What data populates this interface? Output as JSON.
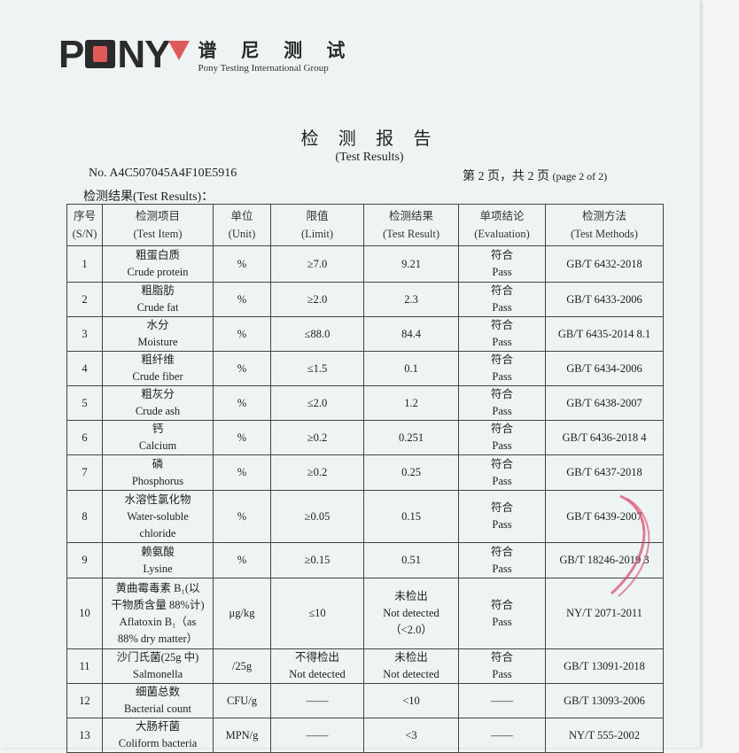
{
  "logo": {
    "brand": "PONY",
    "cn_name": "谱 尼 测 试",
    "en_name": "Pony Testing International Group",
    "accent_color": "#e05a5a"
  },
  "title": "检 测 报 告",
  "subtitle": "(Test Results)",
  "report_no": "No. A4C507045A4F10E5916",
  "page_info": "第 2 页，共 2 页",
  "page_info_en": "(page 2 of 2)",
  "section_label": "检测结果(Test Results)：",
  "table": {
    "headers": [
      [
        "序号",
        "(S/N)"
      ],
      [
        "检测项目",
        "(Test Item)"
      ],
      [
        "单位",
        "(Unit)"
      ],
      [
        "限值",
        "(Limit)"
      ],
      [
        "检测结果",
        "(Test Result)"
      ],
      [
        "单项结论",
        "(Evaluation)"
      ],
      [
        "检测方法",
        "(Test Methods)"
      ]
    ],
    "rows": [
      {
        "sn": "1",
        "item": [
          "粗蛋白质",
          "Crude protein"
        ],
        "unit": "%",
        "limit": [
          "≥7.0"
        ],
        "result": [
          "9.21"
        ],
        "eval": [
          "符合",
          "Pass"
        ],
        "method": "GB/T 6432-2018"
      },
      {
        "sn": "2",
        "item": [
          "粗脂肪",
          "Crude fat"
        ],
        "unit": "%",
        "limit": [
          "≥2.0"
        ],
        "result": [
          "2.3"
        ],
        "eval": [
          "符合",
          "Pass"
        ],
        "method": "GB/T 6433-2006"
      },
      {
        "sn": "3",
        "item": [
          "水分",
          "Moisture"
        ],
        "unit": "%",
        "limit": [
          "≤88.0"
        ],
        "result": [
          "84.4"
        ],
        "eval": [
          "符合",
          "Pass"
        ],
        "method": "GB/T 6435-2014 8.1"
      },
      {
        "sn": "4",
        "item": [
          "粗纤维",
          "Crude fiber"
        ],
        "unit": "%",
        "limit": [
          "≤1.5"
        ],
        "result": [
          "0.1"
        ],
        "eval": [
          "符合",
          "Pass"
        ],
        "method": "GB/T 6434-2006"
      },
      {
        "sn": "5",
        "item": [
          "粗灰分",
          "Crude ash"
        ],
        "unit": "%",
        "limit": [
          "≤2.0"
        ],
        "result": [
          "1.2"
        ],
        "eval": [
          "符合",
          "Pass"
        ],
        "method": "GB/T 6438-2007"
      },
      {
        "sn": "6",
        "item": [
          "钙",
          "Calcium"
        ],
        "unit": "%",
        "limit": [
          "≥0.2"
        ],
        "result": [
          "0.251"
        ],
        "eval": [
          "符合",
          "Pass"
        ],
        "method": "GB/T 6436-2018 4"
      },
      {
        "sn": "7",
        "item": [
          "磷",
          "Phosphorus"
        ],
        "unit": "%",
        "limit": [
          "≥0.2"
        ],
        "result": [
          "0.25"
        ],
        "eval": [
          "符合",
          "Pass"
        ],
        "method": "GB/T 6437-2018"
      },
      {
        "sn": "8",
        "item": [
          "水溶性氯化物",
          "Water-soluble",
          "chloride"
        ],
        "unit": "%",
        "limit": [
          "≥0.05"
        ],
        "result": [
          "0.15"
        ],
        "eval": [
          "符合",
          "Pass"
        ],
        "method": "GB/T 6439-2007"
      },
      {
        "sn": "9",
        "item": [
          "赖氨酸",
          "Lysine"
        ],
        "unit": "%",
        "limit": [
          "≥0.15"
        ],
        "result": [
          "0.51"
        ],
        "eval": [
          "符合",
          "Pass"
        ],
        "method": "GB/T 18246-2019 3"
      },
      {
        "sn": "10",
        "item": [
          "黄曲霉毒素 B₁(以",
          "干物质含量 88%计)",
          "Aflatoxin B₁（as",
          "88% dry matter）"
        ],
        "unit": "μg/kg",
        "limit": [
          "≤10"
        ],
        "result": [
          "未检出",
          "Not detected",
          "（<2.0）"
        ],
        "eval": [
          "符合",
          "Pass"
        ],
        "method": "NY/T 2071-2011"
      },
      {
        "sn": "11",
        "item": [
          "沙门氏菌(25g 中)",
          "Salmonella"
        ],
        "unit": "/25g",
        "limit": [
          "不得检出",
          "Not detected"
        ],
        "result": [
          "未检出",
          "Not detected"
        ],
        "eval": [
          "符合",
          "Pass"
        ],
        "method": "GB/T 13091-2018"
      },
      {
        "sn": "12",
        "item": [
          "细菌总数",
          "Bacterial count"
        ],
        "unit": "CFU/g",
        "limit": [
          "——"
        ],
        "result": [
          "<10"
        ],
        "eval": [
          "——"
        ],
        "method": "GB/T 13093-2006"
      },
      {
        "sn": "13",
        "item": [
          "大肠杆菌",
          "Coliform bacteria"
        ],
        "unit": "MPN/g",
        "limit": [
          "——"
        ],
        "result": [
          "<3"
        ],
        "eval": [
          "——"
        ],
        "method": "NY/T 555-2002"
      }
    ]
  }
}
